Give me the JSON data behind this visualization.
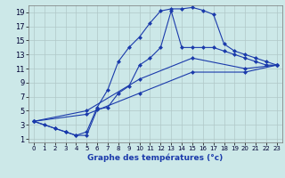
{
  "xlabel": "Graphe des températures (°c)",
  "bg_color": "#cce8e8",
  "grid_color": "#b0c8c8",
  "line_color": "#1a3aab",
  "xlim": [
    -0.5,
    23.5
  ],
  "ylim": [
    0.5,
    20
  ],
  "xticks": [
    0,
    1,
    2,
    3,
    4,
    5,
    6,
    7,
    8,
    9,
    10,
    11,
    12,
    13,
    14,
    15,
    16,
    17,
    18,
    19,
    20,
    21,
    22,
    23
  ],
  "yticks": [
    1,
    3,
    5,
    7,
    9,
    11,
    13,
    15,
    17,
    19
  ],
  "line1_x": [
    0,
    1,
    2,
    3,
    4,
    5,
    6,
    7,
    8,
    9,
    10,
    11,
    12,
    13,
    14,
    15,
    16,
    17,
    18,
    19,
    20,
    21,
    22,
    23
  ],
  "line1_y": [
    3.5,
    3,
    2.5,
    2,
    1.5,
    2,
    5.5,
    8,
    12,
    14,
    15.5,
    17.5,
    19.2,
    19.5,
    19.5,
    19.7,
    19.3,
    18.7,
    14.5,
    13.5,
    13,
    12.5,
    12,
    11.5
  ],
  "line2_x": [
    0,
    2,
    3,
    4,
    5,
    6,
    7,
    8,
    9,
    10,
    11,
    12,
    13,
    14,
    15,
    16,
    17,
    18,
    19,
    20,
    21,
    22,
    23
  ],
  "line2_y": [
    3.5,
    2.5,
    2,
    1.5,
    1.5,
    5.2,
    5.5,
    7.5,
    8.5,
    11.5,
    12.5,
    14,
    19.2,
    14,
    14,
    14,
    14,
    13.5,
    13,
    12.5,
    12,
    11.5,
    11.5
  ],
  "line3_x": [
    0,
    5,
    10,
    15,
    20,
    23
  ],
  "line3_y": [
    3.5,
    5,
    9.5,
    12.5,
    11,
    11.5
  ],
  "line4_x": [
    0,
    5,
    10,
    15,
    20,
    23
  ],
  "line4_y": [
    3.5,
    4.5,
    7.5,
    10.5,
    10.5,
    11.5
  ],
  "marker_size": 2.5
}
